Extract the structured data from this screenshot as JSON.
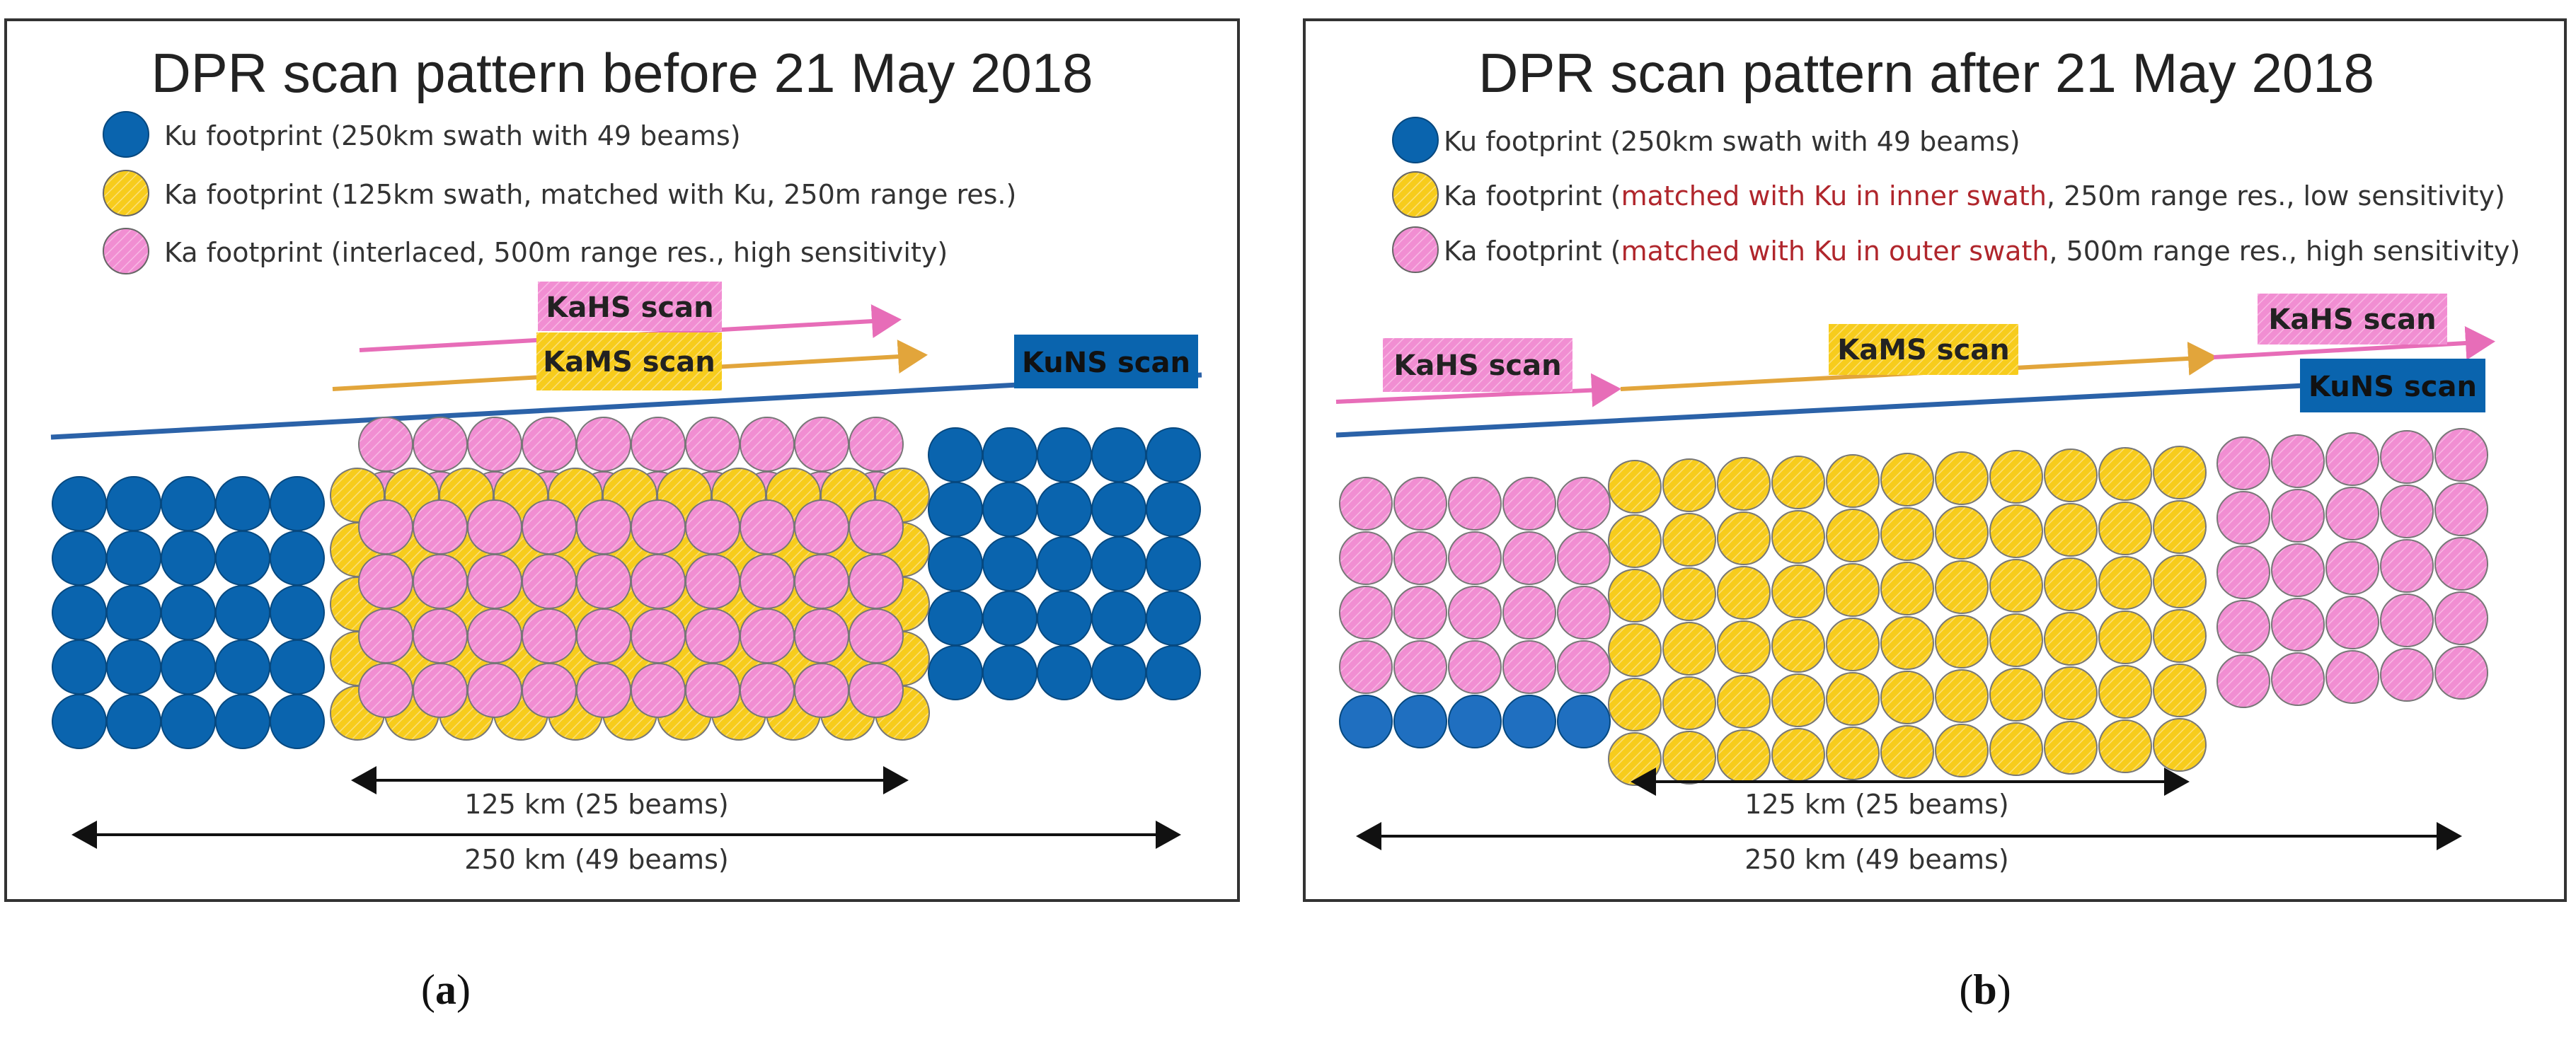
{
  "colors": {
    "ku": "#0a64ae",
    "ku_dark": "#06487f",
    "ka_ms": "#f7cc1c",
    "ka_hs": "#f18ed2",
    "scan_line": "#2b62a8",
    "kahs_arrow": "#e76db8",
    "kams_arrow": "#e2a53b",
    "red_text": "#b0262c"
  },
  "panel_a": {
    "title": "DPR scan pattern before 21 May 2018",
    "legend": {
      "ku": "Ku footprint (250km swath with 49 beams)",
      "ka_matched": "Ka footprint (125km swath, matched with Ku, 250m range res.)",
      "ka_interlaced": "Ka footprint (interlaced, 500m range res., high sensitivity)"
    },
    "scans": {
      "kahs": "KaHS scan",
      "kams": "KaMS scan",
      "kuns": "KuNS scan"
    },
    "dim_inner": "125 km (25 beams)",
    "dim_outer": "250 km (49 beams)",
    "caption_letter": "a"
  },
  "panel_b": {
    "title": "DPR scan pattern after 21 May 2018",
    "legend": {
      "ku": "Ku footprint (250km swath with 49 beams)",
      "ka_inner_prefix": "Ka footprint (",
      "ka_inner_red": "matched with Ku in inner swath",
      "ka_inner_suffix": ", 250m range res., low sensitivity)",
      "ka_outer_prefix": "Ka footprint (",
      "ka_outer_red": "matched with Ku in outer swath",
      "ka_outer_suffix": ", 500m range res., high sensitivity)"
    },
    "scans": {
      "kahs_left": "KaHS scan",
      "kams": "KaMS scan",
      "kahs_right": "KaHS scan",
      "kuns": "KuNS scan"
    },
    "dim_inner": "125 km (25 beams)",
    "dim_outer": "250 km (49 beams)",
    "caption_letter": "b"
  }
}
